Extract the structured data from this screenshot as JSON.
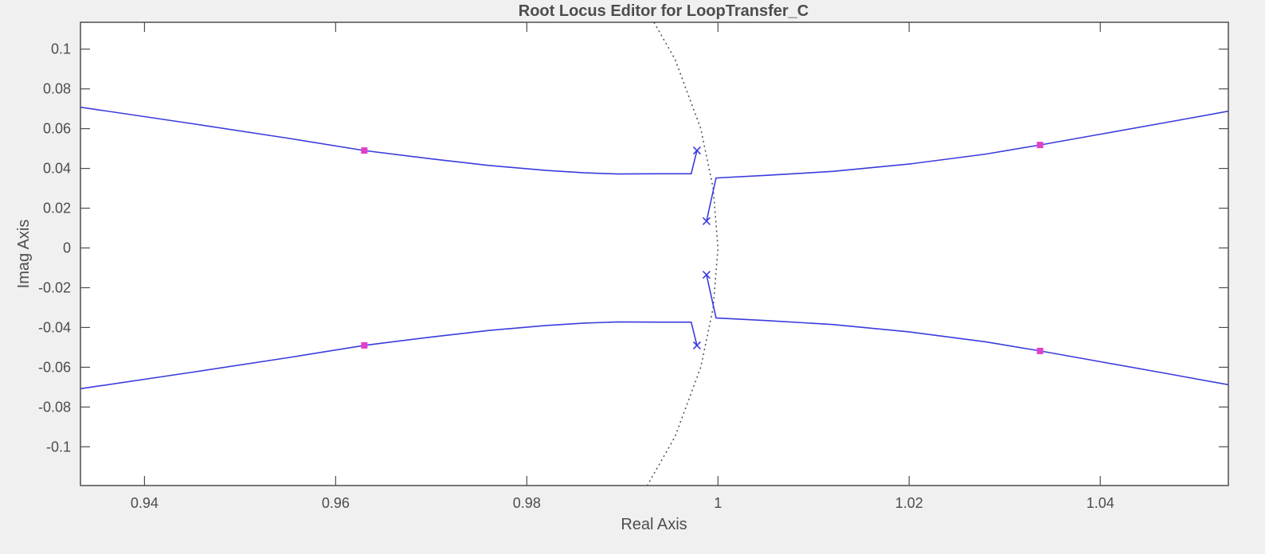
{
  "chart_data": {
    "type": "line",
    "title": "Root Locus Editor for LoopTransfer_C",
    "xlabel": "Real Axis",
    "ylabel": "Imag Axis",
    "xlim": [
      0.9333,
      1.0534
    ],
    "ylim": [
      -0.1195,
      0.1135
    ],
    "x_ticks": [
      0.94,
      0.96,
      0.98,
      1,
      1.02,
      1.04
    ],
    "x_tick_labels": [
      "0.94",
      "0.96",
      "0.98",
      "1",
      "1.02",
      "1.04"
    ],
    "y_ticks": [
      0.1,
      0.08,
      0.06,
      0.04,
      0.02,
      0,
      -0.02,
      -0.04,
      -0.06,
      -0.08,
      -0.1
    ],
    "y_tick_labels": [
      "0.1",
      "0.08",
      "0.06",
      "0.04",
      "0.02",
      "0",
      "-0.02",
      "-0.04",
      "-0.06",
      "-0.08",
      "-0.1"
    ],
    "grid": false,
    "colors": {
      "locus": "#3b3bdc",
      "closed_loop_pole": "#e040c8",
      "open_loop_pole": "#3b3bdc",
      "unit_circle": "#555555",
      "axes": "#4d4d4d",
      "plot_background": "#ffffff",
      "figure_background": "#f0f0f0"
    },
    "series": [
      {
        "points": [
          [
            0.9333,
            0.0708
          ],
          [
            0.945,
            0.0625
          ],
          [
            0.955,
            0.0552
          ],
          [
            0.963,
            0.049
          ],
          [
            0.97,
            0.0448
          ],
          [
            0.976,
            0.0415
          ],
          [
            0.982,
            0.039
          ],
          [
            0.986,
            0.0378
          ],
          [
            0.9895,
            0.0372
          ],
          [
            0.9935,
            0.0373
          ],
          [
            0.9972,
            0.0373
          ],
          [
            0.9978,
            0.049
          ]
        ]
      },
      {
        "points": [
          [
            0.9333,
            -0.0708
          ],
          [
            0.945,
            -0.0625
          ],
          [
            0.955,
            -0.0552
          ],
          [
            0.963,
            -0.049
          ],
          [
            0.97,
            -0.0448
          ],
          [
            0.976,
            -0.0415
          ],
          [
            0.982,
            -0.039
          ],
          [
            0.986,
            -0.0378
          ],
          [
            0.9895,
            -0.0372
          ],
          [
            0.9935,
            -0.0373
          ],
          [
            0.9972,
            -0.0373
          ],
          [
            0.9978,
            -0.049
          ]
        ]
      },
      {
        "points": [
          [
            0.9988,
            0.0135
          ],
          [
            0.9998,
            0.0352
          ],
          [
            1.005,
            0.0365
          ],
          [
            1.012,
            0.0385
          ],
          [
            1.02,
            0.0422
          ],
          [
            1.028,
            0.0472
          ],
          [
            1.0337,
            0.0518
          ],
          [
            1.04,
            0.0572
          ],
          [
            1.047,
            0.0632
          ],
          [
            1.0534,
            0.0688
          ]
        ]
      },
      {
        "points": [
          [
            0.9988,
            -0.0135
          ],
          [
            0.9998,
            -0.0352
          ],
          [
            1.005,
            -0.0365
          ],
          [
            1.012,
            -0.0385
          ],
          [
            1.02,
            -0.0422
          ],
          [
            1.028,
            -0.0472
          ],
          [
            1.0337,
            -0.0518
          ],
          [
            1.04,
            -0.0572
          ],
          [
            1.047,
            -0.0632
          ],
          [
            1.0534,
            -0.0688
          ]
        ]
      }
    ],
    "unit_circle_points": [
      [
        0.9933,
        0.1135
      ],
      [
        0.9955,
        0.095
      ],
      [
        0.9982,
        0.06
      ],
      [
        0.9995,
        0.03
      ],
      [
        1.0,
        0.0
      ],
      [
        0.9995,
        -0.03
      ],
      [
        0.9982,
        -0.06
      ],
      [
        0.9955,
        -0.095
      ],
      [
        0.9926,
        -0.1195
      ]
    ],
    "open_loop_poles": [
      [
        0.9978,
        0.049
      ],
      [
        0.9988,
        0.0135
      ],
      [
        0.9988,
        -0.0135
      ],
      [
        0.9978,
        -0.049
      ]
    ],
    "closed_loop_poles": [
      [
        0.963,
        0.049
      ],
      [
        0.963,
        -0.049
      ],
      [
        1.0337,
        0.0518
      ],
      [
        1.0337,
        -0.0518
      ]
    ]
  }
}
